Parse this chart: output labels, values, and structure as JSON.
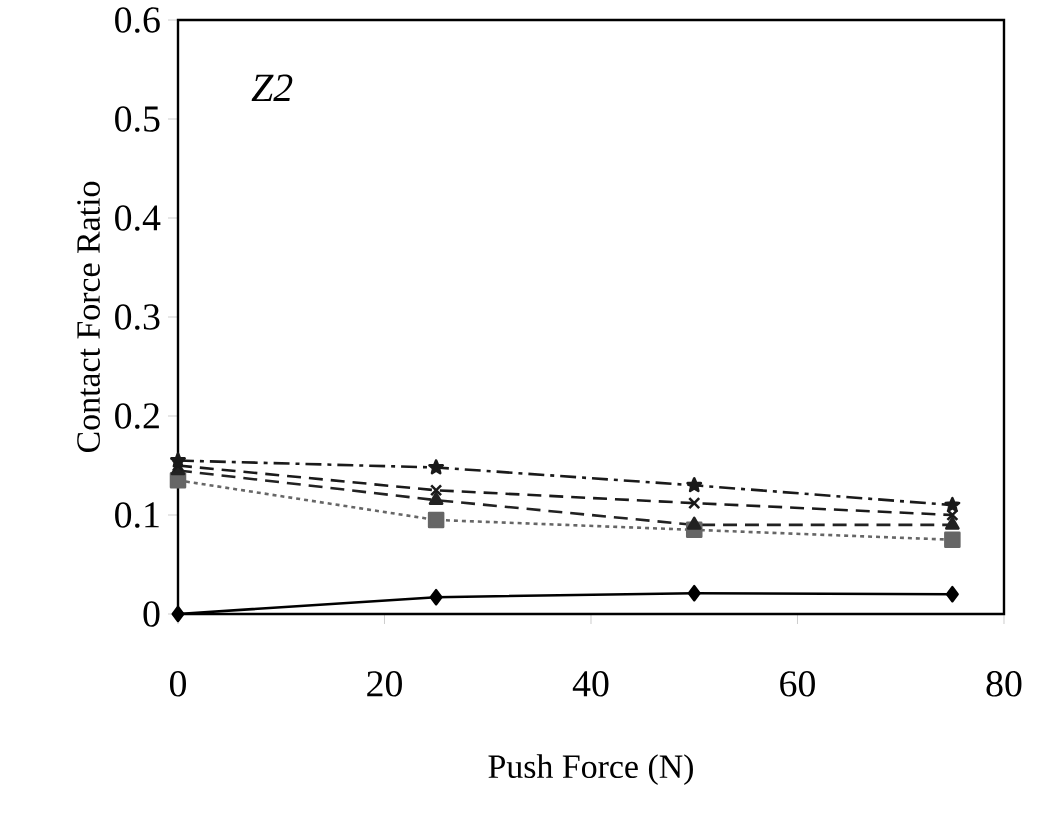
{
  "chart_data": {
    "type": "line",
    "xlabel": "Push Force (N)",
    "ylabel": "Contact Force Ratio",
    "annotations": [
      "Z2"
    ],
    "x": [
      0,
      25,
      50,
      75
    ],
    "xlim": [
      0,
      80
    ],
    "xticks": [
      0,
      20,
      40,
      60,
      80
    ],
    "ylim": [
      0,
      0.6
    ],
    "yticks": [
      0,
      0.1,
      0.2,
      0.3,
      0.4,
      0.5,
      0.6
    ],
    "grid": false,
    "series": [
      {
        "color": "#000000",
        "values": [
          0,
          0.017,
          0.021,
          0.02
        ],
        "marker": "diamond",
        "line_style": "solid"
      },
      {
        "color": "#1a1a1a",
        "values": [
          0.155,
          0.148,
          0.13,
          0.11
        ],
        "marker": "star",
        "line_style": "dashdot"
      },
      {
        "color": "#1a1a1a",
        "values": [
          0.15,
          0.125,
          0.112,
          0.1
        ],
        "marker": "cross",
        "line_style": "dashed"
      },
      {
        "color": "#222222",
        "values": [
          0.145,
          0.115,
          0.09,
          0.09
        ],
        "marker": "triangle",
        "line_style": "dashed"
      },
      {
        "color": "#666666",
        "values": [
          0.135,
          0.095,
          0.085,
          0.075
        ],
        "marker": "square",
        "line_style": "dotted"
      }
    ]
  }
}
